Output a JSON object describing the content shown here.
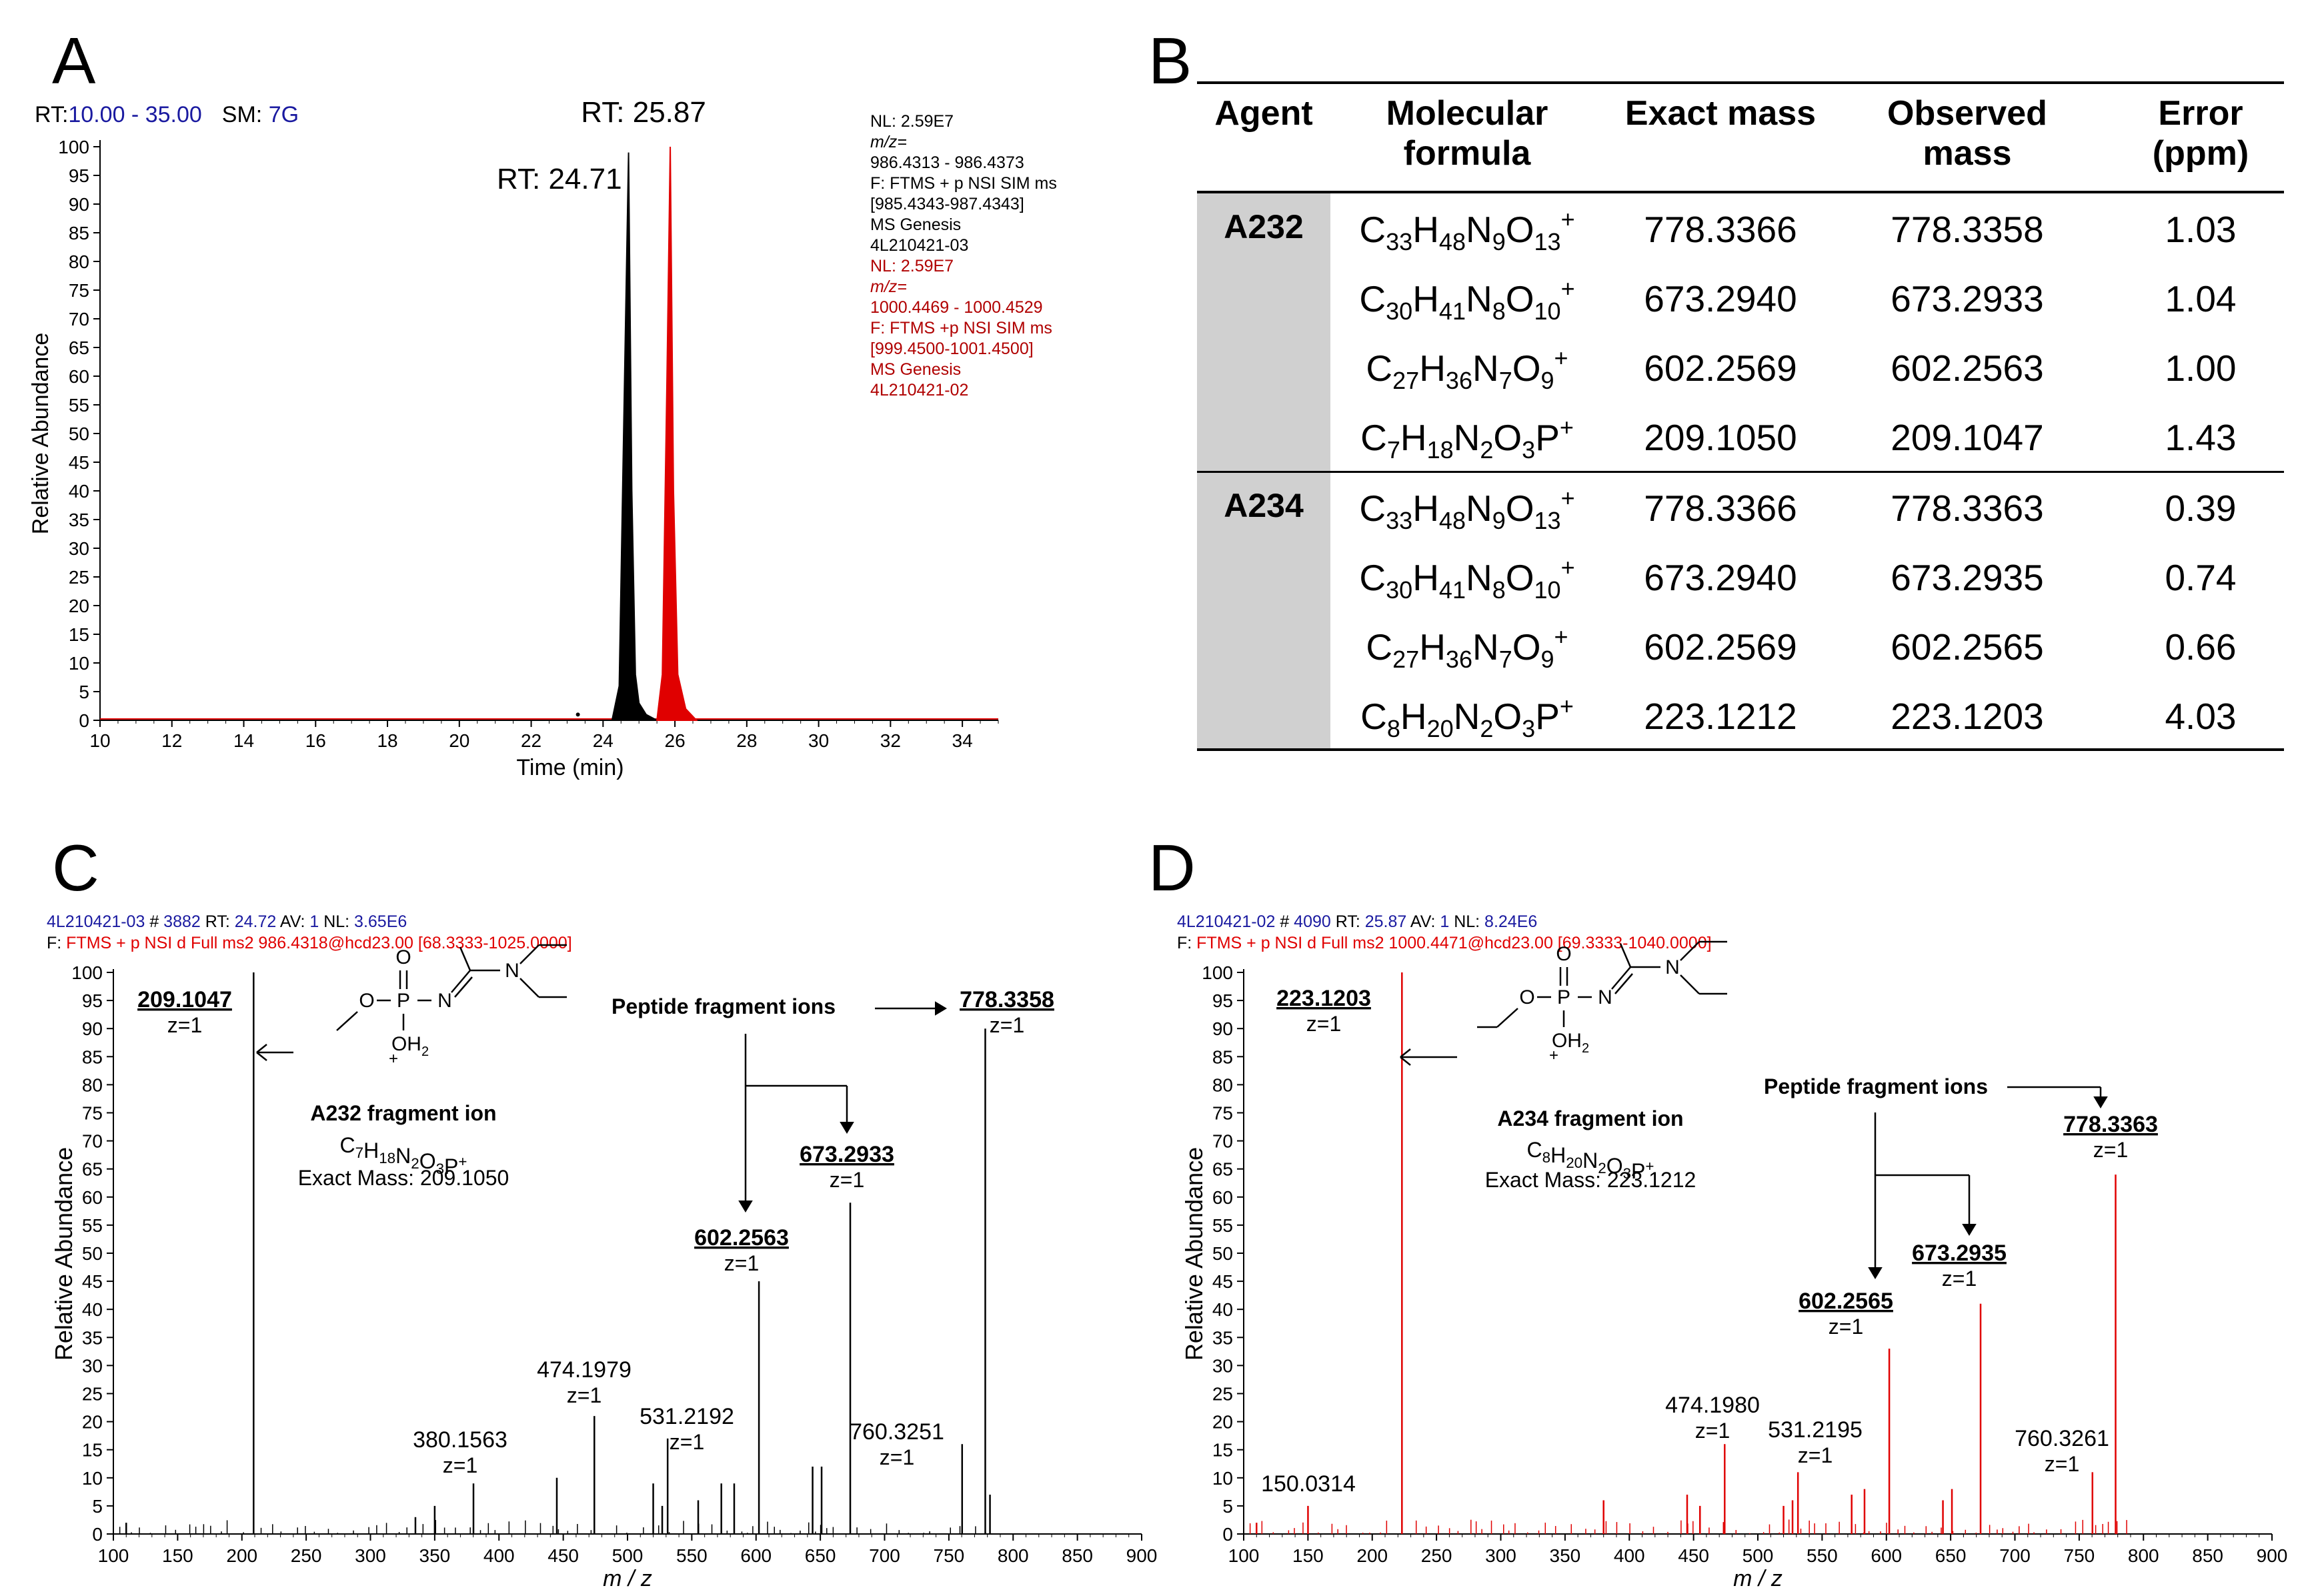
{
  "panels": {
    "A": "A",
    "B": "B",
    "C": "C",
    "D": "D"
  },
  "colors": {
    "black": "#000000",
    "red": "#e00000",
    "blue": "#1a1aa0",
    "darkred": "#b00000",
    "shade": "#d0d0d0"
  },
  "panelA": {
    "header_rt_label": "RT:",
    "header_rt_range": "10.00 - 35.00",
    "header_sm_label": "SM:",
    "header_sm_value": "7G",
    "ylabel": "Relative Abundance",
    "xlabel": "Time (min)",
    "xticks": [
      10,
      12,
      14,
      16,
      18,
      20,
      22,
      24,
      26,
      28,
      30,
      32,
      34
    ],
    "yticks": [
      0,
      5,
      10,
      15,
      20,
      25,
      30,
      35,
      40,
      45,
      50,
      55,
      60,
      65,
      70,
      75,
      80,
      85,
      90,
      95,
      100
    ],
    "peak1_label": "RT: 24.71",
    "peak2_label": "RT: 25.87",
    "info_black": [
      "NL: 2.59E7",
      "m/z=",
      "986.4313 - 986.4373",
      "F: FTMS + p NSI SIM ms",
      "[985.4343-987.4343]",
      "MS  Genesis",
      "4L210421-03"
    ],
    "info_red": [
      "NL: 2.59E7",
      "m/z=",
      "1000.4469 - 1000.4529",
      "F: FTMS +p NSI SIM ms",
      "[999.4500-1001.4500]",
      "MS  Genesis",
      "4L210421-02"
    ]
  },
  "table": {
    "headers": [
      [
        "Agent"
      ],
      [
        "Molecular",
        "formula"
      ],
      [
        "Exact mass"
      ],
      [
        "Observed",
        "mass"
      ],
      [
        "Error",
        "(ppm)"
      ]
    ],
    "groups": [
      {
        "agent": "A232",
        "rows": [
          {
            "formula": [
              [
                "C",
                "33"
              ],
              [
                "H",
                "48"
              ],
              [
                "N",
                "9"
              ],
              [
                "O",
                "13"
              ],
              [
                "+",
                ""
              ]
            ],
            "exact": "778.3366",
            "observed": "778.3358",
            "error": "1.03"
          },
          {
            "formula": [
              [
                "C",
                "30"
              ],
              [
                "H",
                "41"
              ],
              [
                "N",
                "8"
              ],
              [
                "O",
                "10"
              ],
              [
                "+",
                ""
              ]
            ],
            "exact": "673.2940",
            "observed": "673.2933",
            "error": "1.04"
          },
          {
            "formula": [
              [
                "C",
                "27"
              ],
              [
                "H",
                "36"
              ],
              [
                "N",
                "7"
              ],
              [
                "O",
                "9"
              ],
              [
                "+",
                ""
              ]
            ],
            "exact": "602.2569",
            "observed": "602.2563",
            "error": "1.00"
          },
          {
            "formula": [
              [
                "C",
                "7"
              ],
              [
                "H",
                "18"
              ],
              [
                "N",
                "2"
              ],
              [
                "O",
                "3"
              ],
              [
                "P",
                ""
              ],
              [
                "+",
                ""
              ]
            ],
            "exact": "209.1050",
            "observed": "209.1047",
            "error": "1.43"
          }
        ]
      },
      {
        "agent": "A234",
        "rows": [
          {
            "formula": [
              [
                "C",
                "33"
              ],
              [
                "H",
                "48"
              ],
              [
                "N",
                "9"
              ],
              [
                "O",
                "13"
              ],
              [
                "+",
                ""
              ]
            ],
            "exact": "778.3366",
            "observed": "778.3363",
            "error": "0.39"
          },
          {
            "formula": [
              [
                "C",
                "30"
              ],
              [
                "H",
                "41"
              ],
              [
                "N",
                "8"
              ],
              [
                "O",
                "10"
              ],
              [
                "+",
                ""
              ]
            ],
            "exact": "673.2940",
            "observed": "673.2935",
            "error": "0.74"
          },
          {
            "formula": [
              [
                "C",
                "27"
              ],
              [
                "H",
                "36"
              ],
              [
                "N",
                "7"
              ],
              [
                "O",
                "9"
              ],
              [
                "+",
                ""
              ]
            ],
            "exact": "602.2569",
            "observed": "602.2565",
            "error": "0.66"
          },
          {
            "formula": [
              [
                "C",
                "8"
              ],
              [
                "H",
                "20"
              ],
              [
                "N",
                "2"
              ],
              [
                "O",
                "3"
              ],
              [
                "P",
                ""
              ],
              [
                "+",
                ""
              ]
            ],
            "exact": "223.1212",
            "observed": "223.1203",
            "error": "4.03"
          }
        ]
      }
    ]
  },
  "panelC": {
    "header1": {
      "file": "4L210421-03",
      "hash": "#",
      "scan": "3882",
      "rt_label": "RT:",
      "rt": "24.72",
      "av_label": "AV:",
      "av": "1",
      "nl_label": "NL:",
      "nl": "3.65E6"
    },
    "header2": {
      "f_label": "F:",
      "filter": "FTMS + p NSI d Full ms2 986.4318@hcd23.00 [68.3333-1025.0000]"
    },
    "ylabel": "Relative Abundance",
    "xlabel": "m / z",
    "fragment_title": "A232 fragment ion",
    "fragment_formula": "C7H18N2O3P+",
    "exact_mass": "Exact Mass: 209.1050",
    "peptide_label": "Peptide fragment ions",
    "struct_atoms": {
      "O_top": "O",
      "P": "P",
      "N1": "N",
      "N2": "N",
      "O_left": "O",
      "OH2": "OH2",
      "plus": "+"
    }
  },
  "panelD": {
    "header1": {
      "file": "4L210421-02",
      "hash": "#",
      "scan": "4090",
      "rt_label": "RT:",
      "rt": "25.87",
      "av_label": "AV:",
      "av": "1",
      "nl_label": "NL:",
      "nl": "8.24E6"
    },
    "header2": {
      "f_label": "F:",
      "filter": "FTMS + p NSI d Full ms2 1000.4471@hcd23.00 [69.3333-1040.0000]"
    },
    "ylabel": "Relative Abundance",
    "xlabel": "m / z",
    "fragment_title": "A234 fragment ion",
    "fragment_formula": "C8H20N2O3P+",
    "exact_mass": "Exact Mass: 223.1212",
    "peptide_label": "Peptide fragment ions",
    "struct_atoms": {
      "O_top": "O",
      "P": "P",
      "N1": "N",
      "N2": "N",
      "O_left": "O",
      "OH2": "OH2",
      "plus": "+"
    }
  },
  "chart_data": [
    {
      "type": "line",
      "title": "A",
      "xlabel": "Time (min)",
      "ylabel": "Relative Abundance",
      "xlim": [
        10,
        35
      ],
      "ylim": [
        0,
        100
      ],
      "series": [
        {
          "name": "4L210421-03",
          "color": "#000000",
          "peak_rt": 24.71,
          "peak_value": 99,
          "shape": [
            [
              24.25,
              0
            ],
            [
              24.45,
              6
            ],
            [
              24.6,
              60
            ],
            [
              24.71,
              99
            ],
            [
              24.8,
              40
            ],
            [
              24.9,
              8
            ],
            [
              25.0,
              3
            ],
            [
              25.2,
              1
            ],
            [
              25.5,
              0
            ]
          ]
        },
        {
          "name": "4L210421-02",
          "color": "#e00000",
          "peak_rt": 25.87,
          "peak_value": 100,
          "shape": [
            [
              25.5,
              0
            ],
            [
              25.65,
              8
            ],
            [
              25.78,
              60
            ],
            [
              25.87,
              100
            ],
            [
              25.96,
              40
            ],
            [
              26.08,
              8
            ],
            [
              26.3,
              2
            ],
            [
              26.6,
              0
            ]
          ]
        }
      ],
      "minor": [
        [
          23.3,
          1
        ]
      ]
    },
    {
      "type": "bar",
      "title": "C",
      "xlabel": "m / z",
      "ylabel": "Relative Abundance",
      "xlim": [
        100,
        900
      ],
      "ylim": [
        0,
        100
      ],
      "color": "#000000",
      "peaks": [
        [
          209.1047,
          100
        ],
        [
          778.3358,
          90
        ],
        [
          673.2933,
          59
        ],
        [
          602.2563,
          45
        ],
        [
          474.1979,
          21
        ],
        [
          531.2192,
          17
        ],
        [
          760.3251,
          16
        ],
        [
          380.1563,
          9
        ],
        [
          445,
          10
        ],
        [
          520,
          9
        ],
        [
          527,
          5
        ],
        [
          573,
          9
        ],
        [
          583,
          9
        ],
        [
          644,
          12
        ],
        [
          651,
          12
        ],
        [
          555,
          6
        ],
        [
          350,
          5
        ],
        [
          335,
          3
        ],
        [
          782,
          7
        ],
        [
          110,
          2
        ]
      ],
      "labels": [
        {
          "text": "209.1047",
          "z": "z=1",
          "mz": 209.1047,
          "bold": true
        },
        {
          "text": "778.3358",
          "z": "z=1",
          "mz": 778.3358,
          "bold": true
        },
        {
          "text": "673.2933",
          "z": "z=1",
          "mz": 673.2933,
          "bold": true
        },
        {
          "text": "602.2563",
          "z": "z=1",
          "mz": 602.2563,
          "bold": true
        },
        {
          "text": "474.1979",
          "z": "z=1",
          "mz": 474.1979,
          "bold": false
        },
        {
          "text": "531.2192",
          "z": "z=1",
          "mz": 531.2192,
          "bold": false
        },
        {
          "text": "760.3251",
          "z": "z=1",
          "mz": 760.3251,
          "bold": false
        },
        {
          "text": "380.1563",
          "z": "z=1",
          "mz": 380.1563,
          "bold": false
        }
      ],
      "xticks": [
        100,
        150,
        200,
        250,
        300,
        350,
        400,
        450,
        500,
        550,
        600,
        650,
        700,
        750,
        800,
        850,
        900
      ],
      "yticks": [
        0,
        5,
        10,
        15,
        20,
        25,
        30,
        35,
        40,
        45,
        50,
        55,
        60,
        65,
        70,
        75,
        80,
        85,
        90,
        95,
        100
      ]
    },
    {
      "type": "bar",
      "title": "D",
      "xlabel": "m / z",
      "ylabel": "Relative Abundance",
      "xlim": [
        100,
        900
      ],
      "ylim": [
        0,
        100
      ],
      "color": "#e00000",
      "peaks": [
        [
          223.1203,
          100
        ],
        [
          778.3363,
          64
        ],
        [
          673.2935,
          41
        ],
        [
          602.2565,
          33
        ],
        [
          474.198,
          16
        ],
        [
          531.2195,
          11
        ],
        [
          760.3261,
          11
        ],
        [
          150.0314,
          5
        ],
        [
          445,
          7
        ],
        [
          520,
          5
        ],
        [
          527,
          6
        ],
        [
          573,
          7
        ],
        [
          583,
          8
        ],
        [
          644,
          6
        ],
        [
          651,
          8
        ],
        [
          380,
          6
        ],
        [
          455,
          5
        ],
        [
          110,
          2
        ]
      ],
      "labels": [
        {
          "text": "223.1203",
          "z": "z=1",
          "mz": 223.1203,
          "bold": true
        },
        {
          "text": "778.3363",
          "z": "z=1",
          "mz": 778.3363,
          "bold": true
        },
        {
          "text": "673.2935",
          "z": "z=1",
          "mz": 673.2935,
          "bold": true
        },
        {
          "text": "602.2565",
          "z": "z=1",
          "mz": 602.2565,
          "bold": true
        },
        {
          "text": "474.1980",
          "z": "z=1",
          "mz": 474.198,
          "bold": false
        },
        {
          "text": "531.2195",
          "z": "z=1",
          "mz": 531.2195,
          "bold": false
        },
        {
          "text": "760.3261",
          "z": "z=1",
          "mz": 760.3261,
          "bold": false
        },
        {
          "text": "150.0314",
          "z": "",
          "mz": 150.0314,
          "bold": false
        }
      ],
      "xticks": [
        100,
        150,
        200,
        250,
        300,
        350,
        400,
        450,
        500,
        550,
        600,
        650,
        700,
        750,
        800,
        850,
        900
      ],
      "yticks": [
        0,
        5,
        10,
        15,
        20,
        25,
        30,
        35,
        40,
        45,
        50,
        55,
        60,
        65,
        70,
        75,
        80,
        85,
        90,
        95,
        100
      ]
    }
  ]
}
